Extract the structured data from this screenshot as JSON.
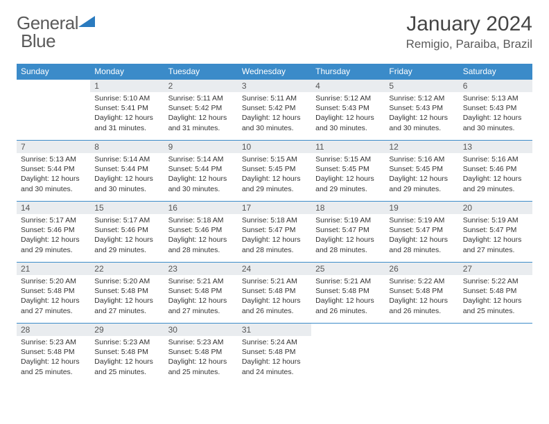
{
  "brand": {
    "word1": "General",
    "word2": "Blue"
  },
  "title": "January 2024",
  "location": "Remigio, Paraiba, Brazil",
  "colors": {
    "header_bg": "#3b8bc9",
    "header_text": "#ffffff",
    "daynum_bg": "#e9ecef",
    "border": "#3b8bc9",
    "body_text": "#333333",
    "brand_gray": "#5a5a5a",
    "brand_blue": "#2a7bbf"
  },
  "weekdays": [
    "Sunday",
    "Monday",
    "Tuesday",
    "Wednesday",
    "Thursday",
    "Friday",
    "Saturday"
  ],
  "weeks": [
    [
      null,
      {
        "n": "1",
        "sr": "5:10 AM",
        "ss": "5:41 PM",
        "dl": "12 hours and 31 minutes."
      },
      {
        "n": "2",
        "sr": "5:11 AM",
        "ss": "5:42 PM",
        "dl": "12 hours and 31 minutes."
      },
      {
        "n": "3",
        "sr": "5:11 AM",
        "ss": "5:42 PM",
        "dl": "12 hours and 30 minutes."
      },
      {
        "n": "4",
        "sr": "5:12 AM",
        "ss": "5:43 PM",
        "dl": "12 hours and 30 minutes."
      },
      {
        "n": "5",
        "sr": "5:12 AM",
        "ss": "5:43 PM",
        "dl": "12 hours and 30 minutes."
      },
      {
        "n": "6",
        "sr": "5:13 AM",
        "ss": "5:43 PM",
        "dl": "12 hours and 30 minutes."
      }
    ],
    [
      {
        "n": "7",
        "sr": "5:13 AM",
        "ss": "5:44 PM",
        "dl": "12 hours and 30 minutes."
      },
      {
        "n": "8",
        "sr": "5:14 AM",
        "ss": "5:44 PM",
        "dl": "12 hours and 30 minutes."
      },
      {
        "n": "9",
        "sr": "5:14 AM",
        "ss": "5:44 PM",
        "dl": "12 hours and 30 minutes."
      },
      {
        "n": "10",
        "sr": "5:15 AM",
        "ss": "5:45 PM",
        "dl": "12 hours and 29 minutes."
      },
      {
        "n": "11",
        "sr": "5:15 AM",
        "ss": "5:45 PM",
        "dl": "12 hours and 29 minutes."
      },
      {
        "n": "12",
        "sr": "5:16 AM",
        "ss": "5:45 PM",
        "dl": "12 hours and 29 minutes."
      },
      {
        "n": "13",
        "sr": "5:16 AM",
        "ss": "5:46 PM",
        "dl": "12 hours and 29 minutes."
      }
    ],
    [
      {
        "n": "14",
        "sr": "5:17 AM",
        "ss": "5:46 PM",
        "dl": "12 hours and 29 minutes."
      },
      {
        "n": "15",
        "sr": "5:17 AM",
        "ss": "5:46 PM",
        "dl": "12 hours and 29 minutes."
      },
      {
        "n": "16",
        "sr": "5:18 AM",
        "ss": "5:46 PM",
        "dl": "12 hours and 28 minutes."
      },
      {
        "n": "17",
        "sr": "5:18 AM",
        "ss": "5:47 PM",
        "dl": "12 hours and 28 minutes."
      },
      {
        "n": "18",
        "sr": "5:19 AM",
        "ss": "5:47 PM",
        "dl": "12 hours and 28 minutes."
      },
      {
        "n": "19",
        "sr": "5:19 AM",
        "ss": "5:47 PM",
        "dl": "12 hours and 28 minutes."
      },
      {
        "n": "20",
        "sr": "5:19 AM",
        "ss": "5:47 PM",
        "dl": "12 hours and 27 minutes."
      }
    ],
    [
      {
        "n": "21",
        "sr": "5:20 AM",
        "ss": "5:48 PM",
        "dl": "12 hours and 27 minutes."
      },
      {
        "n": "22",
        "sr": "5:20 AM",
        "ss": "5:48 PM",
        "dl": "12 hours and 27 minutes."
      },
      {
        "n": "23",
        "sr": "5:21 AM",
        "ss": "5:48 PM",
        "dl": "12 hours and 27 minutes."
      },
      {
        "n": "24",
        "sr": "5:21 AM",
        "ss": "5:48 PM",
        "dl": "12 hours and 26 minutes."
      },
      {
        "n": "25",
        "sr": "5:21 AM",
        "ss": "5:48 PM",
        "dl": "12 hours and 26 minutes."
      },
      {
        "n": "26",
        "sr": "5:22 AM",
        "ss": "5:48 PM",
        "dl": "12 hours and 26 minutes."
      },
      {
        "n": "27",
        "sr": "5:22 AM",
        "ss": "5:48 PM",
        "dl": "12 hours and 25 minutes."
      }
    ],
    [
      {
        "n": "28",
        "sr": "5:23 AM",
        "ss": "5:48 PM",
        "dl": "12 hours and 25 minutes."
      },
      {
        "n": "29",
        "sr": "5:23 AM",
        "ss": "5:48 PM",
        "dl": "12 hours and 25 minutes."
      },
      {
        "n": "30",
        "sr": "5:23 AM",
        "ss": "5:48 PM",
        "dl": "12 hours and 25 minutes."
      },
      {
        "n": "31",
        "sr": "5:24 AM",
        "ss": "5:48 PM",
        "dl": "12 hours and 24 minutes."
      },
      null,
      null,
      null
    ]
  ],
  "labels": {
    "sunrise": "Sunrise:",
    "sunset": "Sunset:",
    "daylight": "Daylight:"
  }
}
